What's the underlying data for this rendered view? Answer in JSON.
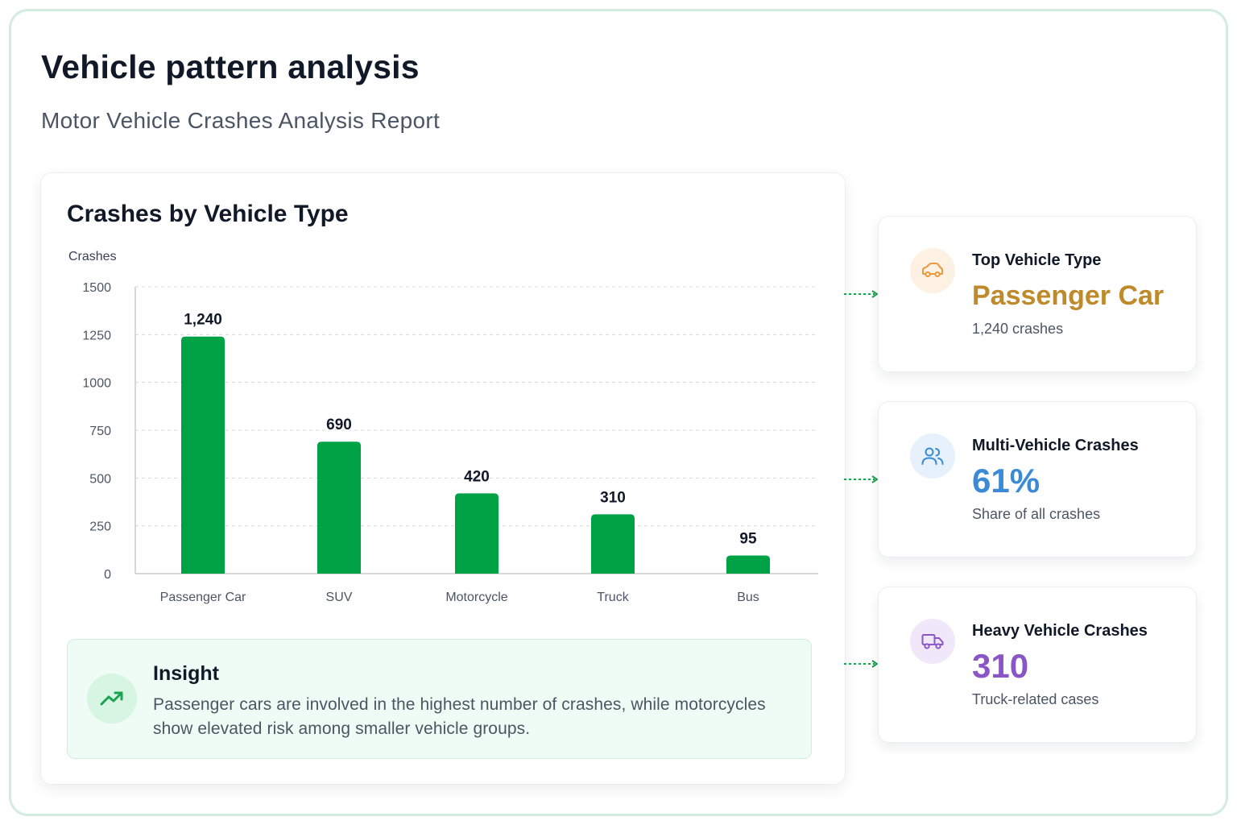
{
  "page": {
    "title": "Vehicle pattern analysis",
    "subtitle": "Motor Vehicle Crashes Analysis Report"
  },
  "chart_data": {
    "type": "bar",
    "title": "Crashes by Vehicle Type",
    "xlabel": "",
    "ylabel": "Crashes",
    "categories": [
      "Passenger Car",
      "SUV",
      "Motorcycle",
      "Truck",
      "Bus"
    ],
    "values": [
      1240,
      690,
      420,
      310,
      95
    ],
    "value_labels": [
      "1,240",
      "690",
      "420",
      "310",
      "95"
    ],
    "ylim": [
      0,
      1500
    ],
    "yticks": [
      0,
      250,
      500,
      750,
      1000,
      1250,
      1500
    ],
    "grid": true,
    "bar_color": "#00a246"
  },
  "insight": {
    "title": "Insight",
    "text": "Passenger cars are involved in the highest number of crashes, while motorcycles show elevated risk among smaller vehicle groups.",
    "icon": "trend-up-icon",
    "color": "#1aa350"
  },
  "stats": [
    {
      "label": "Top Vehicle Type",
      "value": "Passenger Car",
      "note": "1,240 crashes",
      "icon": "car-icon",
      "color": "#bf8a2c",
      "icon_bg": "#fdf1e3"
    },
    {
      "label": "Multi-Vehicle Crashes",
      "value": "61%",
      "note": "Share of all crashes",
      "icon": "users-icon",
      "color": "#3b8ad6",
      "icon_bg": "#e6f1fb"
    },
    {
      "label": "Heavy Vehicle Crashes",
      "value": "310",
      "note": "Truck-related cases",
      "icon": "truck-icon",
      "color": "#8a55c4",
      "icon_bg": "#f1e7fb"
    }
  ]
}
